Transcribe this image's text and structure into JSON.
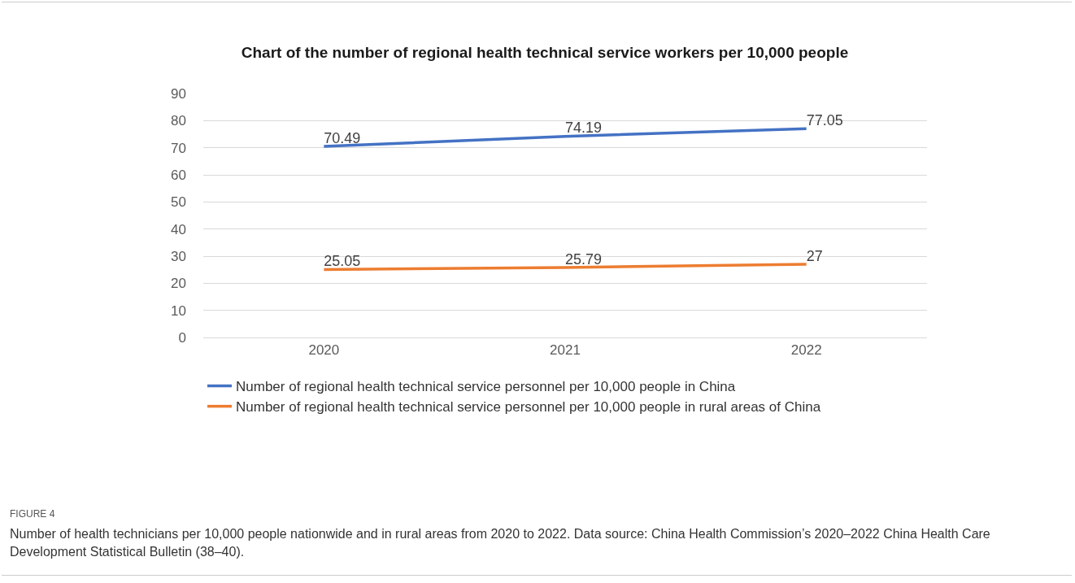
{
  "chart_data": {
    "type": "line",
    "title": "Chart of the number of regional health technical service workers per 10,000 people",
    "categories": [
      "2020",
      "2021",
      "2022"
    ],
    "series": [
      {
        "name": "Number of regional health technical service personnel per 10,000 people in China",
        "color": "#4472c4",
        "values": [
          70.49,
          74.19,
          77.05
        ]
      },
      {
        "name": "Number of regional health technical service personnel per 10,000 people in rural areas of China",
        "color": "#ed7d31",
        "values": [
          25.05,
          25.79,
          27
        ]
      }
    ],
    "ylim": [
      0,
      90
    ],
    "yticks": [
      0,
      10,
      20,
      30,
      40,
      50,
      60,
      70,
      80,
      90
    ],
    "grid": "y",
    "legend": "bottom",
    "marker": "none",
    "line_style": "solid",
    "data_labels": true,
    "annotations": [
      "FIGURE 4",
      "Number of health technicians per 10,000 people nationwide and in rural areas from 2020 to 2022. Data source: China Health Commission’s 2020–2022 China Health Care Development Statistical Bulletin (38–40)."
    ]
  }
}
